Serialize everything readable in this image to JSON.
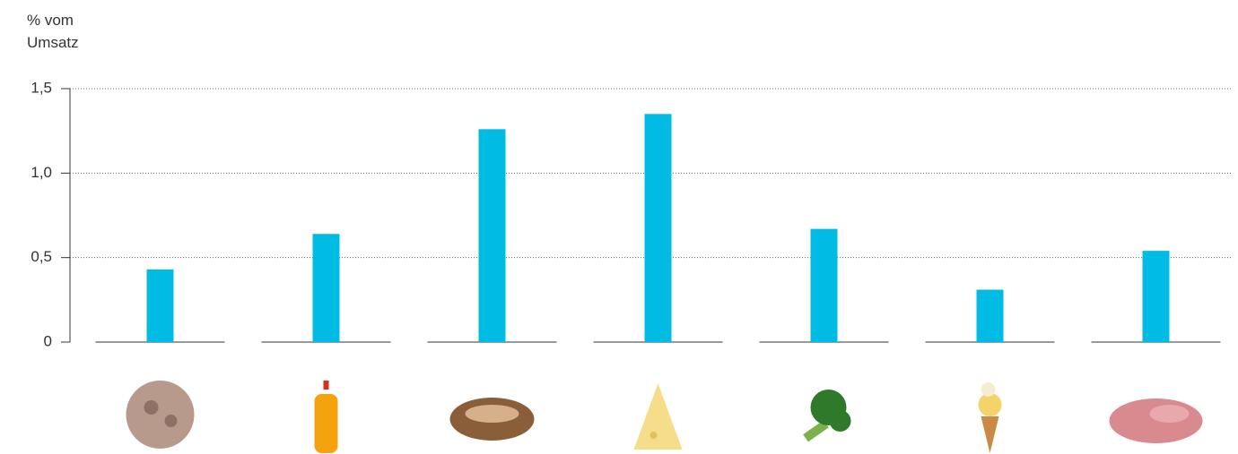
{
  "chart_data": {
    "type": "bar",
    "y_label": "% vom Umsatz",
    "categories": [
      null,
      null,
      null,
      null,
      null,
      null,
      null
    ],
    "values": [
      0.43,
      0.64,
      1.26,
      1.35,
      0.67,
      0.31,
      0.54
    ],
    "color": "#00bce4",
    "ylim": [
      0,
      1.5
    ],
    "yticks": [
      0,
      {
        "value": 0.5,
        "label": "0,5"
      },
      {
        "value": 1.0,
        "label": "1,0"
      },
      {
        "value": 1.5,
        "label": "1,5"
      }
    ],
    "grid": true
  }
}
